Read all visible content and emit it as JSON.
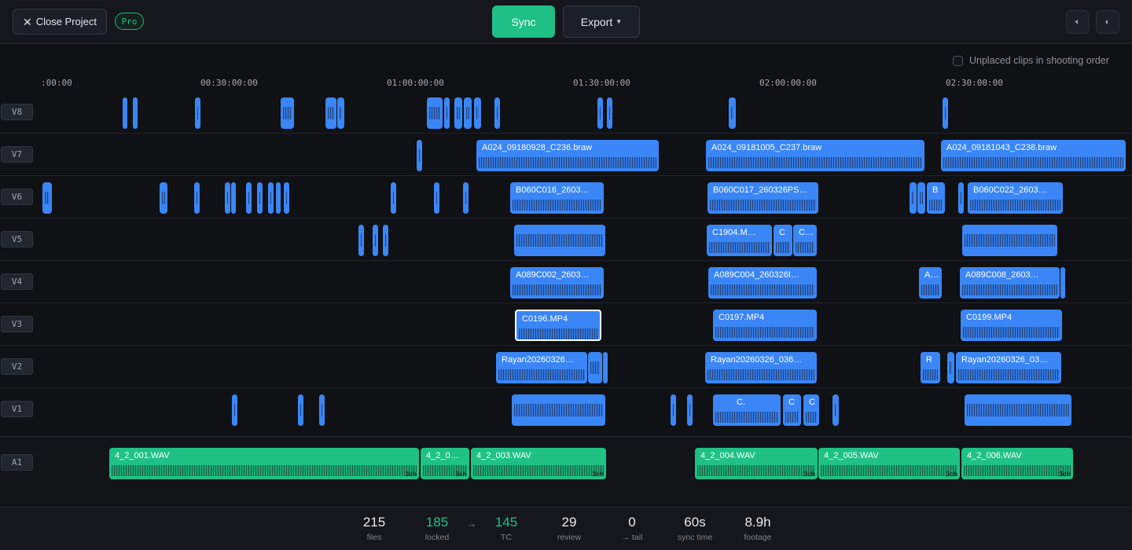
{
  "header": {
    "close_label": "Close Project",
    "pro_badge": "Pro",
    "sync_label": "Sync",
    "export_label": "Export",
    "volume_icon": "speaker-icon",
    "theme_icon": "contrast-icon"
  },
  "timeline": {
    "unplaced_label": "Unplaced clips in shooting order",
    "ruler": [
      ":00:00",
      "00:30:00:00",
      "01:00:00:00",
      "01:30:00:00",
      "02:00:00:00",
      "02:30:00:00"
    ],
    "video_tracks": [
      "V8",
      "V7",
      "V6",
      "V5",
      "V4",
      "V3",
      "V2",
      "V1"
    ],
    "audio_tracks": [
      "A1"
    ],
    "clip_names": {
      "v7_a": "A024_09180928_C236.braw",
      "v7_b": "A024_09181005_C237.braw",
      "v7_c": "A024_09181043_C238.braw",
      "v6_a": "B060C016_2603…",
      "v6_b": "B060C017_260326PS…",
      "v6_c": "B",
      "v6_d": "B060C022_2603…",
      "v5_a": "C1904.M…",
      "v5_b": "C",
      "v5_c": "C…",
      "v4_a": "A089C002_2603…",
      "v4_b": "A089C004_260326I…",
      "v4_c": "A…",
      "v4_d": "A089C008_2603…",
      "v3_a": "C0196.MP4",
      "v3_b": "C0197.MP4",
      "v3_c": "C0199.MP4",
      "v2_a": "Rayan20260326…",
      "v2_b": "Rayan20260326_036…",
      "v2_c": "R",
      "v2_d": "Rayan20260326_03…",
      "v1_a": "C.",
      "v1_b": "C",
      "v1_c": "C",
      "a1_a": "4_2_001.WAV",
      "a1_b": "4_2_0…",
      "a1_c": "4_2_003.WAV",
      "a1_d": "4_2_004.WAV",
      "a1_e": "4_2_005.WAV",
      "a1_f": "4_2_006.WAV",
      "channels": "3ch"
    }
  },
  "stats": {
    "files": {
      "value": "215",
      "label": "files"
    },
    "locked": {
      "value": "185",
      "label": "locked"
    },
    "arrow": "→",
    "tc": {
      "value": "145",
      "label": "TC"
    },
    "review": {
      "value": "29",
      "label": "review"
    },
    "tail": {
      "value": "0",
      "label": "→ tail"
    },
    "sync_time": {
      "value": "60s",
      "label": "sync time"
    },
    "footage": {
      "value": "8.9h",
      "label": "footage"
    }
  },
  "colors": {
    "video_clip": "#3a86f6",
    "audio_clip": "#1fc184",
    "accent": "#1fbf85"
  }
}
